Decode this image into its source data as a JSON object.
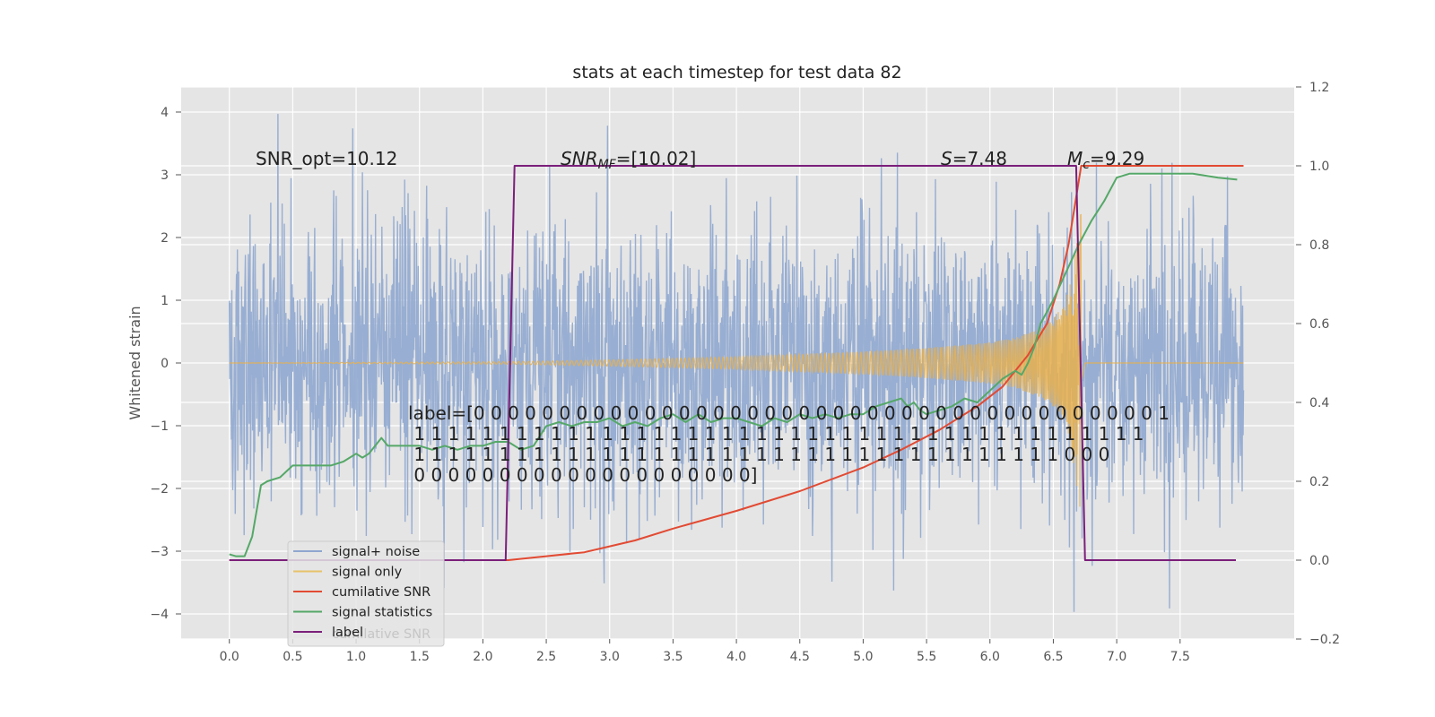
{
  "chart_data": {
    "type": "line",
    "title": "stats at each timestep for test data 82",
    "ylabel": "Whitened strain",
    "xlabel": "",
    "xlim": [
      -0.38,
      8.4
    ],
    "ylim": [
      -4.4,
      4.4
    ],
    "y2lim": [
      -0.2,
      1.2
    ],
    "grid": true,
    "legend_position": "lower-left",
    "x_ticks": [
      "0.0",
      "0.5",
      "1.0",
      "1.5",
      "2.0",
      "2.5",
      "3.0",
      "3.5",
      "4.0",
      "4.5",
      "5.0",
      "5.5",
      "6.0",
      "6.5",
      "7.0",
      "7.5"
    ],
    "x_tick_values": [
      0,
      0.5,
      1,
      1.5,
      2,
      2.5,
      3,
      3.5,
      4,
      4.5,
      5,
      5.5,
      6,
      6.5,
      7,
      7.5
    ],
    "y_ticks": [
      "4",
      "3",
      "2",
      "1",
      "0",
      "−1",
      "−2",
      "−3",
      "−4"
    ],
    "y_tick_values": [
      4,
      3,
      2,
      1,
      0,
      -1,
      -2,
      -3,
      -4
    ],
    "y2_ticks": [
      "1.2",
      "1.0",
      "0.8",
      "0.6",
      "0.4",
      "0.2",
      "0.0",
      "−0.2"
    ],
    "y2_tick_values": [
      1.2,
      1.0,
      0.8,
      0.6,
      0.4,
      0.2,
      0.0,
      -0.2
    ],
    "annotations": {
      "snr_opt": "SNR_opt=10.12",
      "snr_mf": "SNR_MF=[10.02]",
      "snr_mf_base": "SNR",
      "snr_mf_sub": "MF",
      "snr_mf_rest": "=[10.02]",
      "s_stat": "S=7.48",
      "s_stat_var": "S",
      "s_stat_rest": "=7.48",
      "mc": "M_c=9.29",
      "mc_var": "M",
      "mc_sub": "c",
      "mc_rest": "=9.29",
      "label_text": [
        "label=[0 0 0 0 0 0 0 0 0 0 0 0 0 0 0 0 0 0 0 0 0 0 0 0 0 0 0 0 0 0 0 0 0 0 0 0 0 0 0 0 1",
        " 1 1 1 1 1 1 1 1 1 1 1 1 1 1 1 1 1 1 1 1 1 1 1 1 1 1 1 1 1 1 1 1 1 1 1 1 1 1 1 1 1 1 1",
        " 1 1 1 1 1 1 1 1 1 1 1 1 1 1 1 1 1 1 1 1 1 1 1 1 1 1 1 1 1 1 1 1 1 1 1 1 1 1 0 0 0",
        " 0 0 0 0 0 0 0 0 0 0 0 0 0 0 0 0 0 0 0 0]"
      ]
    },
    "legend": [
      {
        "name": "signal+ noise",
        "color": "#8fa7cf"
      },
      {
        "name": "signal only",
        "color": "#e8c26a"
      },
      {
        "name": "cumilative SNR",
        "color": "#e24a33"
      },
      {
        "name": "signal statistics",
        "color": "#55a868"
      },
      {
        "name": "label",
        "color": "#7b1f7a"
      }
    ],
    "legend_hidden_text": "cumilative SNR",
    "series": [
      {
        "name": "signal+ noise",
        "axis": "left",
        "color": "#8fa7cf",
        "style": "noise",
        "x_range": [
          0,
          8.0
        ],
        "amplitude_typical": 2.0,
        "amplitude_peak": 4.05
      },
      {
        "name": "signal only",
        "axis": "left",
        "color": "#e8b04e",
        "style": "chirp",
        "x_range": [
          0,
          8.0
        ],
        "merger_time": 6.72,
        "peak_amplitude": 2.4,
        "envelope_x": [
          0,
          2.2,
          3,
          4,
          5,
          5.5,
          6,
          6.2,
          6.4,
          6.5,
          6.6,
          6.65,
          6.7,
          6.72,
          6.75
        ],
        "envelope_y": [
          0,
          0.02,
          0.05,
          0.1,
          0.18,
          0.24,
          0.33,
          0.4,
          0.55,
          0.7,
          1.0,
          1.4,
          2.3,
          2.4,
          0
        ]
      },
      {
        "name": "cumilative SNR",
        "axis": "right",
        "color": "#e24a33",
        "x": [
          0,
          2.2,
          2.5,
          2.8,
          3.0,
          3.2,
          3.5,
          4.0,
          4.5,
          5.0,
          5.3,
          5.6,
          5.9,
          6.1,
          6.3,
          6.45,
          6.55,
          6.62,
          6.68,
          6.72,
          6.75,
          7.0,
          7.5,
          8.0
        ],
        "y": [
          0.0,
          0.0,
          0.01,
          0.02,
          0.035,
          0.05,
          0.08,
          0.125,
          0.175,
          0.235,
          0.28,
          0.33,
          0.39,
          0.44,
          0.52,
          0.6,
          0.7,
          0.8,
          0.92,
          1.0,
          1.0,
          1.0,
          1.0,
          1.0
        ]
      },
      {
        "name": "signal statistics",
        "axis": "right",
        "color": "#55a868",
        "x": [
          0,
          0.05,
          0.12,
          0.18,
          0.25,
          0.3,
          0.4,
          0.5,
          0.6,
          0.7,
          0.8,
          0.9,
          1.0,
          1.05,
          1.1,
          1.15,
          1.2,
          1.25,
          1.3,
          1.4,
          1.5,
          1.6,
          1.7,
          1.8,
          1.9,
          2.0,
          2.1,
          2.2,
          2.3,
          2.4,
          2.5,
          2.6,
          2.7,
          2.8,
          2.9,
          3.0,
          3.1,
          3.2,
          3.3,
          3.4,
          3.5,
          3.6,
          3.7,
          3.8,
          3.9,
          4.0,
          4.1,
          4.2,
          4.3,
          4.4,
          4.5,
          4.6,
          4.7,
          4.8,
          4.9,
          5.0,
          5.1,
          5.2,
          5.3,
          5.35,
          5.4,
          5.45,
          5.5,
          5.6,
          5.7,
          5.8,
          5.9,
          6.0,
          6.1,
          6.2,
          6.25,
          6.3,
          6.35,
          6.4,
          6.5,
          6.6,
          6.7,
          6.8,
          6.9,
          7.0,
          7.1,
          7.2,
          7.4,
          7.6,
          7.8,
          7.95
        ],
        "y": [
          0.015,
          0.01,
          0.01,
          0.06,
          0.19,
          0.2,
          0.21,
          0.24,
          0.24,
          0.24,
          0.24,
          0.25,
          0.27,
          0.26,
          0.27,
          0.29,
          0.31,
          0.29,
          0.29,
          0.29,
          0.29,
          0.28,
          0.29,
          0.28,
          0.29,
          0.29,
          0.3,
          0.3,
          0.28,
          0.29,
          0.34,
          0.35,
          0.34,
          0.35,
          0.35,
          0.36,
          0.34,
          0.35,
          0.34,
          0.36,
          0.37,
          0.35,
          0.37,
          0.35,
          0.36,
          0.36,
          0.35,
          0.34,
          0.36,
          0.35,
          0.37,
          0.36,
          0.37,
          0.36,
          0.37,
          0.37,
          0.39,
          0.4,
          0.41,
          0.39,
          0.4,
          0.38,
          0.37,
          0.38,
          0.39,
          0.41,
          0.4,
          0.43,
          0.46,
          0.48,
          0.47,
          0.5,
          0.54,
          0.6,
          0.66,
          0.73,
          0.8,
          0.86,
          0.91,
          0.97,
          0.98,
          0.98,
          0.98,
          0.98,
          0.97,
          0.965
        ]
      },
      {
        "name": "label",
        "axis": "right",
        "color": "#7b1f7a",
        "x": [
          0,
          2.18,
          2.25,
          6.68,
          6.75,
          7.94
        ],
        "y": [
          0,
          0,
          1,
          1,
          0,
          0
        ]
      }
    ]
  }
}
